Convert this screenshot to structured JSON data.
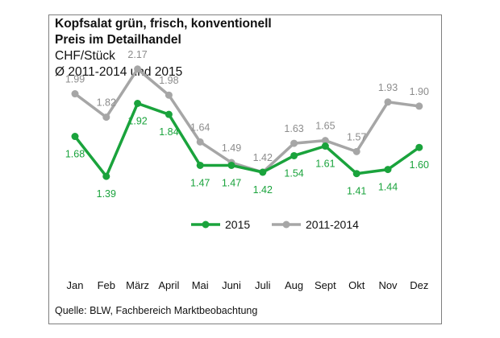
{
  "chart_data": {
    "type": "line",
    "title": "Kopfsalat grün, frisch, konventionell",
    "subtitle": "Preis im Detailhandel",
    "unit": "CHF/Stück",
    "period": "Ø 2011-2014 und 2015",
    "categories": [
      "Jan",
      "Feb",
      "März",
      "April",
      "Mai",
      "Juni",
      "Juli",
      "Aug",
      "Sept",
      "Okt",
      "Nov",
      "Dez"
    ],
    "series": [
      {
        "name": "2015",
        "color": "#1aa33c",
        "values": [
          1.68,
          1.39,
          1.92,
          1.84,
          1.47,
          1.47,
          1.42,
          1.54,
          1.61,
          1.41,
          1.44,
          1.6
        ],
        "labels": [
          "1.68",
          "1.39",
          "1.92",
          "1.84",
          "1.47",
          "1.47",
          "1.42",
          "1.54",
          "1.61",
          "1.41",
          "1.44",
          "1.60"
        ]
      },
      {
        "name": "2011-2014",
        "color": "#a6a6a6",
        "values": [
          1.99,
          1.82,
          2.17,
          1.98,
          1.64,
          1.49,
          1.42,
          1.63,
          1.65,
          1.57,
          1.93,
          1.9
        ],
        "labels": [
          "1.99",
          "1.82",
          "2.17",
          "1.98",
          "1.64",
          "1.49",
          "1.42",
          "1.63",
          "1.65",
          "1.57",
          "1.93",
          "1.90"
        ]
      }
    ],
    "legend_position": "middle-center",
    "source": "Quelle: BLW, Fachbereich Marktbeobachtung"
  }
}
